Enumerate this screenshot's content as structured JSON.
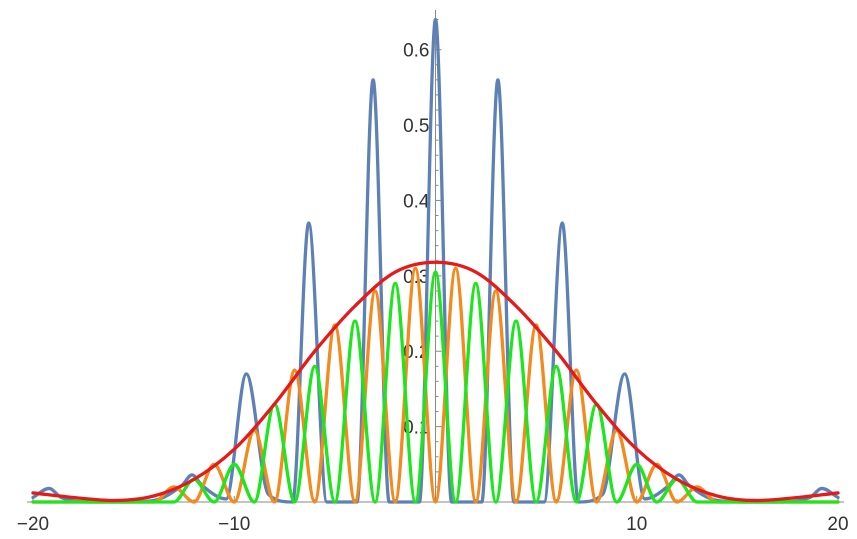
{
  "chart_data": {
    "type": "line",
    "title": "",
    "xlabel": "",
    "ylabel": "",
    "xlim": [
      -20,
      20
    ],
    "ylim": [
      0,
      0.65
    ],
    "grid": false,
    "x_ticks": [
      {
        "value": -20,
        "label": "−20"
      },
      {
        "value": -10,
        "label": "−10"
      },
      {
        "value": 10,
        "label": "10"
      },
      {
        "value": 20,
        "label": "20"
      }
    ],
    "y_ticks": [
      {
        "value": 0.1,
        "label": "0.1"
      },
      {
        "value": 0.2,
        "label": "0.2"
      },
      {
        "value": 0.3,
        "label": "0.3"
      },
      {
        "value": 0.4,
        "label": "0.4"
      },
      {
        "value": 0.5,
        "label": "0.5"
      },
      {
        "value": 0.6,
        "label": "0.6"
      }
    ],
    "series": [
      {
        "color": "#5e81b5",
        "x": [
          -20,
          -19.2,
          -18.6,
          -17,
          -15.5,
          -14,
          -12.6,
          -12.1,
          -11.6,
          -10.4,
          -9.4,
          -8.3,
          -7.1,
          -6.3,
          -5.4,
          -3.9,
          -3.1,
          -2.3,
          -0.8,
          0,
          0.8,
          2.3,
          3.1,
          3.9,
          5.4,
          6.3,
          7.1,
          8.3,
          9.4,
          10.4,
          11.6,
          12.1,
          12.6,
          14,
          15.5,
          17,
          18.6,
          19.2,
          20
        ],
        "y": [
          0.006,
          0.018,
          0.006,
          0.0,
          0.0,
          0.002,
          0.022,
          0.036,
          0.022,
          0.004,
          0.17,
          0.01,
          0.0,
          0.37,
          0.0,
          0.0,
          0.56,
          0.0,
          0.0,
          0.64,
          0.0,
          0.0,
          0.56,
          0.0,
          0.0,
          0.37,
          0.0,
          0.01,
          0.17,
          0.004,
          0.022,
          0.036,
          0.022,
          0.002,
          0.0,
          0.0,
          0.006,
          0.018,
          0.006
        ]
      },
      {
        "color": "#f28a1e",
        "x": [
          -20,
          -19,
          -18,
          -17,
          -16,
          -15,
          -14,
          -13,
          -12,
          -11,
          -10,
          -9,
          -8,
          -7,
          -6,
          -5,
          -4,
          -3,
          -2,
          -1,
          0,
          1,
          2,
          3,
          4,
          5,
          6,
          7,
          8,
          9,
          10,
          11,
          12,
          13,
          14,
          15,
          16,
          17,
          18,
          19,
          20
        ],
        "y": [
          0.0,
          0.0,
          0.0,
          0.0,
          0.0,
          0.0,
          0.0,
          0.02,
          0.0,
          0.05,
          0.0,
          0.095,
          0.0,
          0.175,
          0.0,
          0.235,
          0.0,
          0.28,
          0.0,
          0.31,
          0.0,
          0.31,
          0.0,
          0.28,
          0.0,
          0.235,
          0.0,
          0.175,
          0.0,
          0.095,
          0.0,
          0.05,
          0.0,
          0.02,
          0.0,
          0.0,
          0.0,
          0.0,
          0.0,
          0.0,
          0.0
        ]
      },
      {
        "color": "#1ee61e",
        "x": [
          -20,
          -19,
          -18,
          -17,
          -16,
          -15,
          -14,
          -13,
          -12,
          -11,
          -10,
          -9,
          -8,
          -7,
          -6,
          -5,
          -4,
          -3,
          -2,
          -1,
          0,
          1,
          2,
          3,
          4,
          5,
          6,
          7,
          8,
          9,
          10,
          11,
          12,
          13,
          14,
          15,
          16,
          17,
          18,
          19,
          20
        ],
        "y": [
          0.0,
          0.0,
          0.0,
          0.0,
          0.0,
          0.0,
          0.0,
          0.0,
          0.03,
          0.0,
          0.05,
          0.0,
          0.13,
          0.0,
          0.18,
          0.0,
          0.24,
          0.0,
          0.29,
          0.0,
          0.305,
          0.0,
          0.29,
          0.0,
          0.24,
          0.0,
          0.18,
          0.0,
          0.13,
          0.0,
          0.05,
          0.0,
          0.03,
          0.0,
          0.0,
          0.0,
          0.0,
          0.0,
          0.0,
          0.0,
          0.0
        ]
      },
      {
        "color": "#e61a1a",
        "x": [
          -20,
          -18,
          -16,
          -14,
          -12,
          -10,
          -8,
          -6,
          -4,
          -2,
          0,
          2,
          4,
          6,
          8,
          10,
          12,
          14,
          16,
          18,
          20
        ],
        "y": [
          0.012,
          0.006,
          0.002,
          0.008,
          0.03,
          0.07,
          0.13,
          0.2,
          0.26,
          0.305,
          0.318,
          0.305,
          0.26,
          0.2,
          0.13,
          0.07,
          0.03,
          0.008,
          0.002,
          0.006,
          0.012
        ]
      }
    ]
  }
}
